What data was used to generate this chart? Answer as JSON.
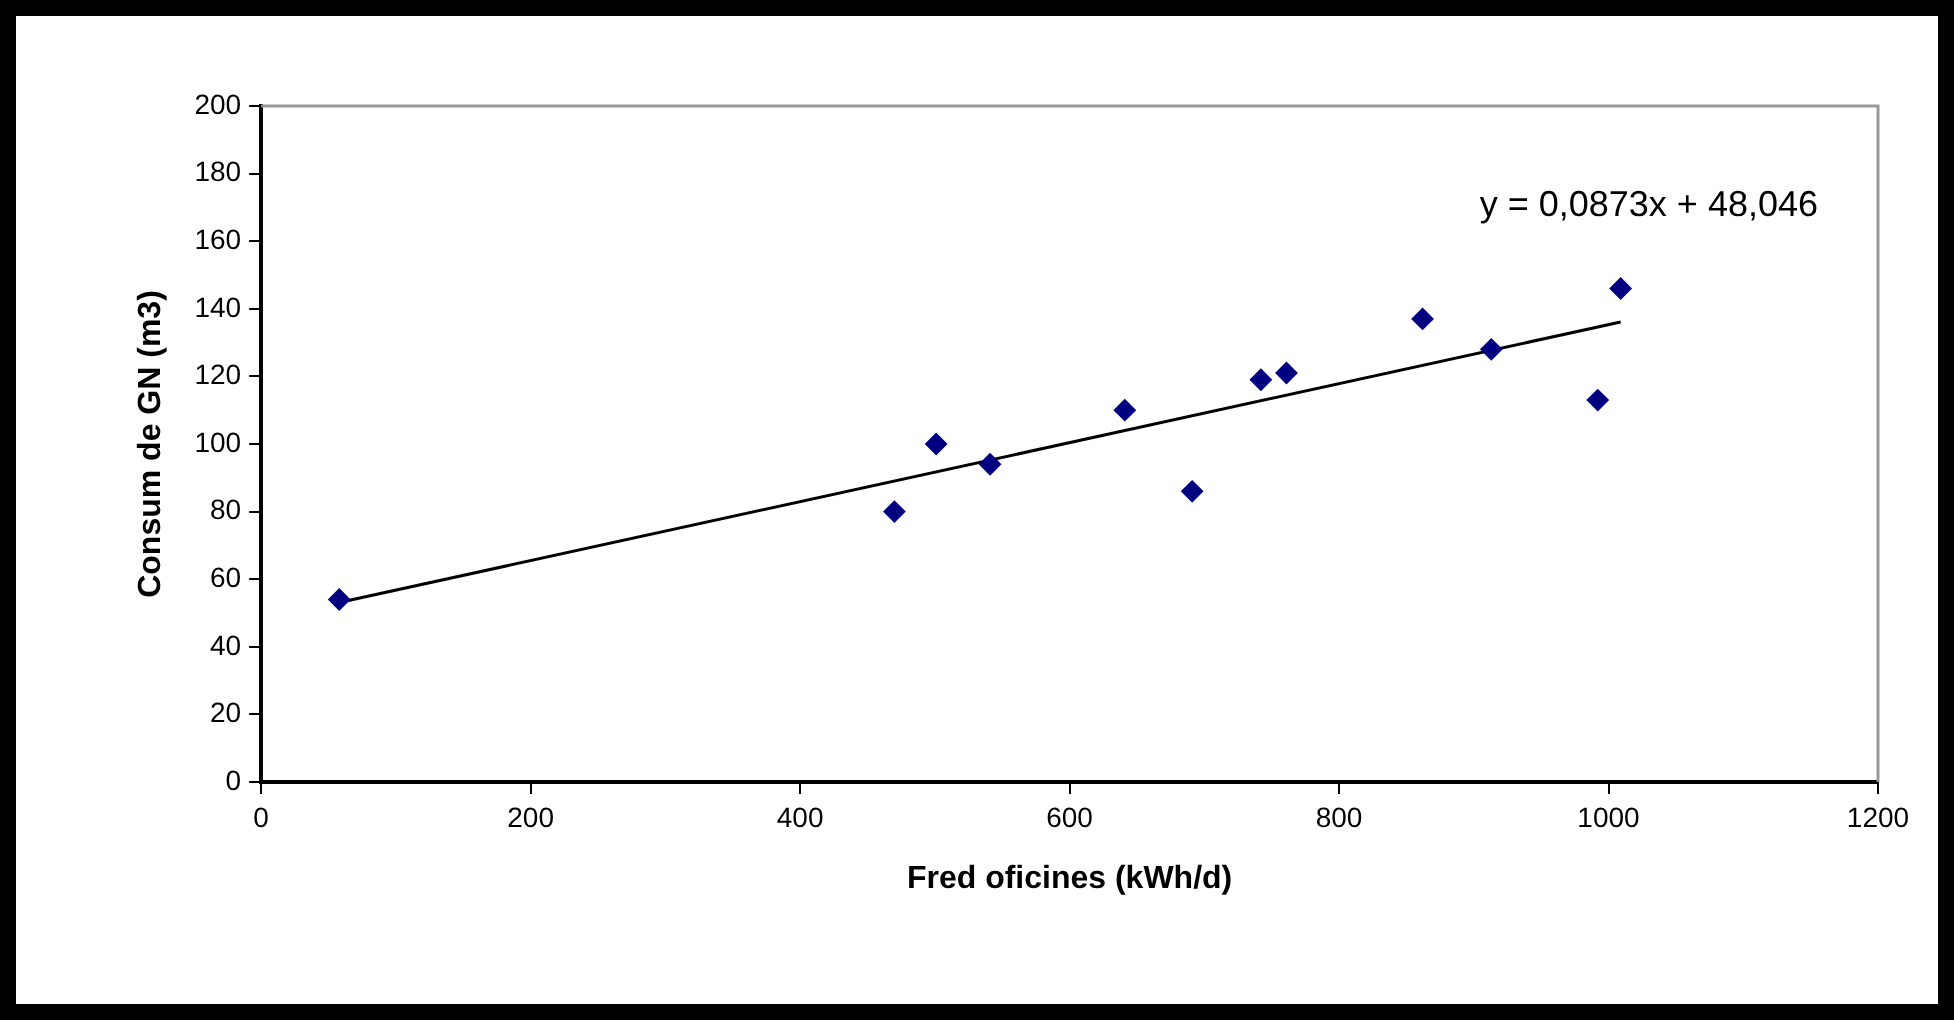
{
  "chart_data": {
    "type": "scatter",
    "xlabel": "Fred oficines (kWh/d)",
    "ylabel": "Consum de GN (m3)",
    "xlim": [
      0,
      1200
    ],
    "xticks": [
      0,
      200,
      400,
      600,
      800,
      1000,
      1200
    ],
    "ylim": [
      0,
      200
    ],
    "yticks": [
      0,
      20,
      40,
      60,
      80,
      100,
      120,
      140,
      160,
      180,
      200
    ],
    "grid": false,
    "legend": false,
    "marker": "diamond",
    "series": [
      {
        "color": "#000080",
        "x": [
          58,
          470,
          501,
          541,
          641,
          691,
          742,
          761,
          862,
          913,
          992,
          1009
        ],
        "values": [
          54,
          80,
          100,
          94,
          110,
          86,
          119,
          121,
          137,
          128,
          113,
          146
        ]
      },
      {
        "type": "line",
        "color": "#000000",
        "marker": "none",
        "line_style": "solid",
        "x": [
          58,
          1009
        ],
        "values": [
          53.1,
          136.1
        ]
      }
    ],
    "annotations": [
      "y = 0,0873x + 48,046"
    ]
  }
}
